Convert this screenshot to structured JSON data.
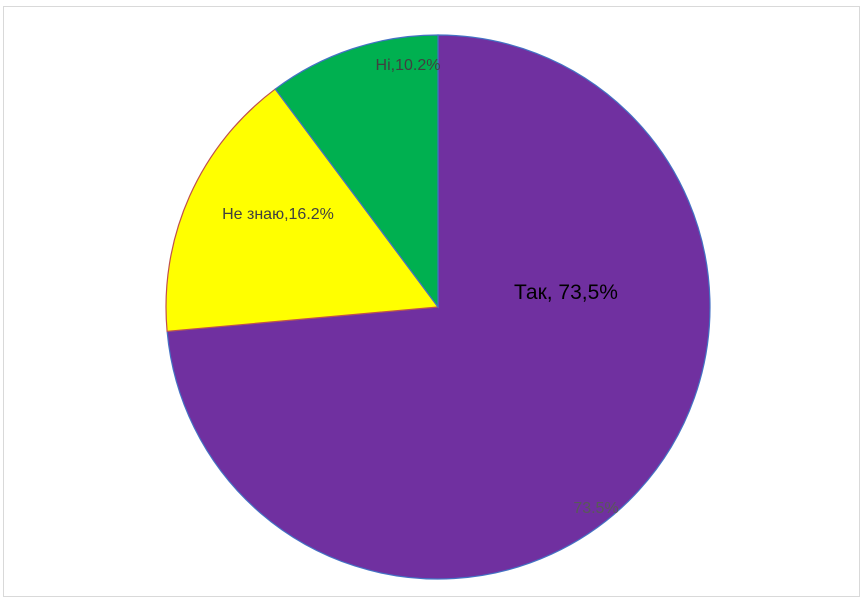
{
  "chart_data": {
    "type": "pie",
    "title": "",
    "slices": [
      {
        "label": "Так",
        "value": 73.5,
        "color": "#7030a0",
        "outline": "#4472c4"
      },
      {
        "label": "Не знаю",
        "value": 16.2,
        "color": "#ffff00",
        "outline": "#c0504d"
      },
      {
        "label": "Ні",
        "value": 10.2,
        "color": "#00b050",
        "outline": "#4472c4"
      }
    ],
    "data_labels": [
      {
        "slice": "Так",
        "text": "Так, 73,5%",
        "color": "#000000"
      },
      {
        "slice": "Так",
        "text": "73.5%",
        "color": "#595959"
      },
      {
        "slice": "Не знаю",
        "text": "Не знаю,16.2%",
        "color": "#404040"
      },
      {
        "slice": "Ні",
        "text": "Ні,10.2%",
        "color": "#404040"
      }
    ],
    "start_angle": "12 o'clock",
    "direction": "clockwise",
    "legend": "none"
  }
}
